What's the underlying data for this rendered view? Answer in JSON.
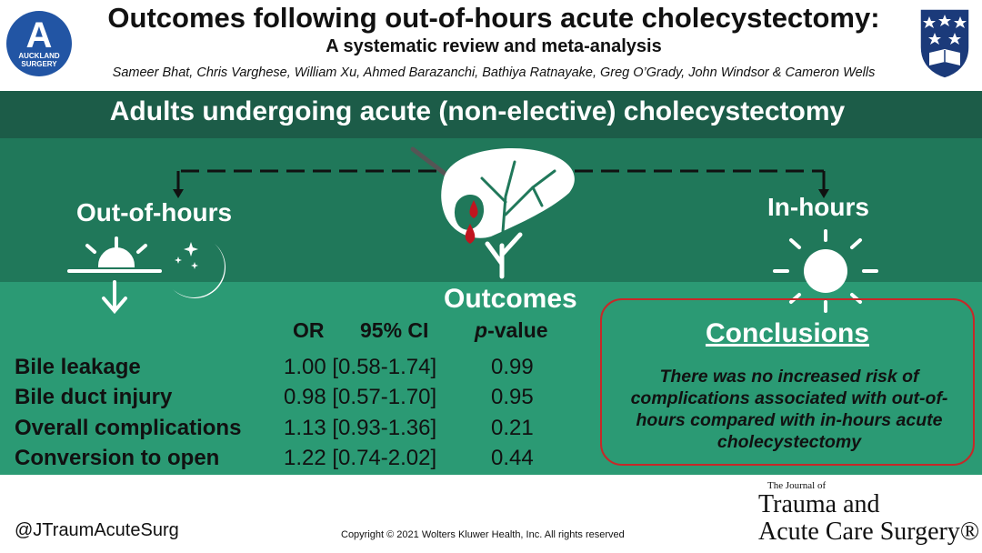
{
  "header": {
    "title": "Outcomes following out-of-hours acute cholecystectomy:",
    "subtitle": "A systematic review and meta-analysis",
    "authors": "Sameer Bhat, Chris Varghese, William Xu, Ahmed Barazanchi, Bathiya Ratnayake, Greg O’Grady, John Windsor & Cameron Wells",
    "left_logo_letter": "A",
    "left_logo_text_1": "AUCKLAND",
    "left_logo_text_2": "SURGERY"
  },
  "population": "Adults undergoing acute (non-elective) cholecystectomy",
  "groups": {
    "out_of_hours": "Out-of-hours",
    "in_hours": "In-hours"
  },
  "outcomes": {
    "title": "Outcomes",
    "col_or": "OR",
    "col_ci": "95% CI",
    "col_p_italic": "p",
    "col_p_rest": "-value",
    "rows": [
      {
        "label": "Bile leakage",
        "or_ci": "1.00 [0.58-1.74]",
        "p": "0.99"
      },
      {
        "label": "Bile duct injury",
        "or_ci": "0.98 [0.57-1.70]",
        "p": "0.95"
      },
      {
        "label": "Overall complications",
        "or_ci": "1.13 [0.93-1.36]",
        "p": "0.21"
      },
      {
        "label": "Conversion to open",
        "or_ci": "1.22 [0.74-2.02]",
        "p": "0.44"
      }
    ]
  },
  "conclusions": {
    "title": "Conclusions",
    "text": "There was no increased risk of complications associated with out-of-hours compared with in-hours acute cholecystectomy"
  },
  "footer": {
    "handle": "@JTraumAcuteSurg",
    "copyright": "Copyright © 2021  Wolters Kluwer Health, Inc. All rights reserved",
    "journal_small": "The Journal of",
    "journal_line1": "Trauma and",
    "journal_line2": "Acute Care Surgery®"
  },
  "colors": {
    "band_dark": "#1c5c48",
    "band_mid": "#20785a",
    "band_light": "#2b9a74",
    "logo_blue": "#2255a4",
    "crest_navy": "#1b3a7a",
    "conclusion_border": "#c62828",
    "blood": "#c0151f"
  },
  "icons": [
    "auckland-surgery-logo",
    "university-crest-icon",
    "sunset-icon",
    "moon-stars-icon",
    "liver-gallbladder-icon",
    "scalpel-icon",
    "blood-drop-icon",
    "sun-icon",
    "down-arrow-icon"
  ]
}
